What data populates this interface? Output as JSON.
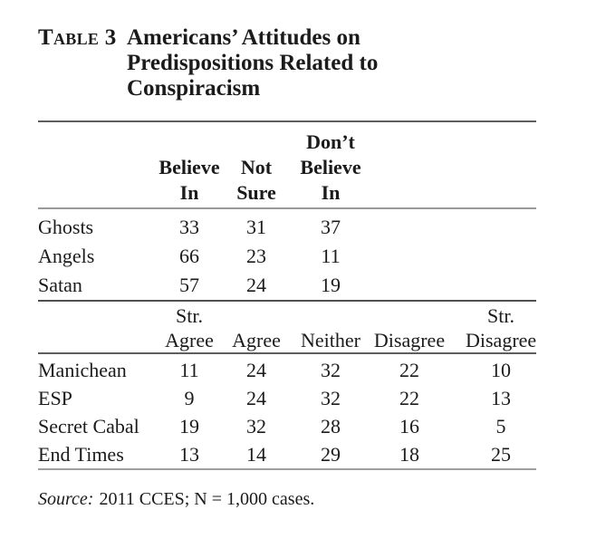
{
  "colors": {
    "text": "#1b1b1b",
    "background": "#ffffff",
    "rule_dark": "#5e5e5e",
    "rule_light": "#9a9a9a"
  },
  "title": {
    "label": "Table 3",
    "lines": [
      "Americans’ Attitudes on",
      "Predispositions Related to",
      "Conspiracism"
    ]
  },
  "belief_table": {
    "header_rows": [
      [
        "",
        "",
        "",
        "Don’t",
        "",
        ""
      ],
      [
        "",
        "Believe",
        "Not",
        "Believe",
        "",
        ""
      ],
      [
        "",
        "In",
        "Sure",
        "In",
        "",
        ""
      ]
    ],
    "rows": [
      {
        "label": "Ghosts",
        "values": [
          "33",
          "31",
          "37"
        ]
      },
      {
        "label": "Angels",
        "values": [
          "66",
          "23",
          "11"
        ]
      },
      {
        "label": "Satan",
        "values": [
          "57",
          "24",
          "19"
        ]
      }
    ]
  },
  "agreement_table": {
    "header_rows": [
      [
        "",
        "Str.",
        "",
        "",
        "",
        "Str."
      ],
      [
        "",
        "Agree",
        "Agree",
        "Neither",
        "Disagree",
        "Disagree"
      ]
    ],
    "rows": [
      {
        "label": "Manichean",
        "values": [
          "11",
          "24",
          "32",
          "22",
          "10"
        ]
      },
      {
        "label": "ESP",
        "values": [
          "9",
          "24",
          "32",
          "22",
          "13"
        ]
      },
      {
        "label": "Secret Cabal",
        "values": [
          "19",
          "32",
          "28",
          "16",
          "5"
        ]
      },
      {
        "label": "End Times",
        "values": [
          "13",
          "14",
          "29",
          "18",
          "25"
        ]
      }
    ]
  },
  "source_note": {
    "label": "Source:",
    "text": "2011 CCES; N = 1,000 cases."
  }
}
